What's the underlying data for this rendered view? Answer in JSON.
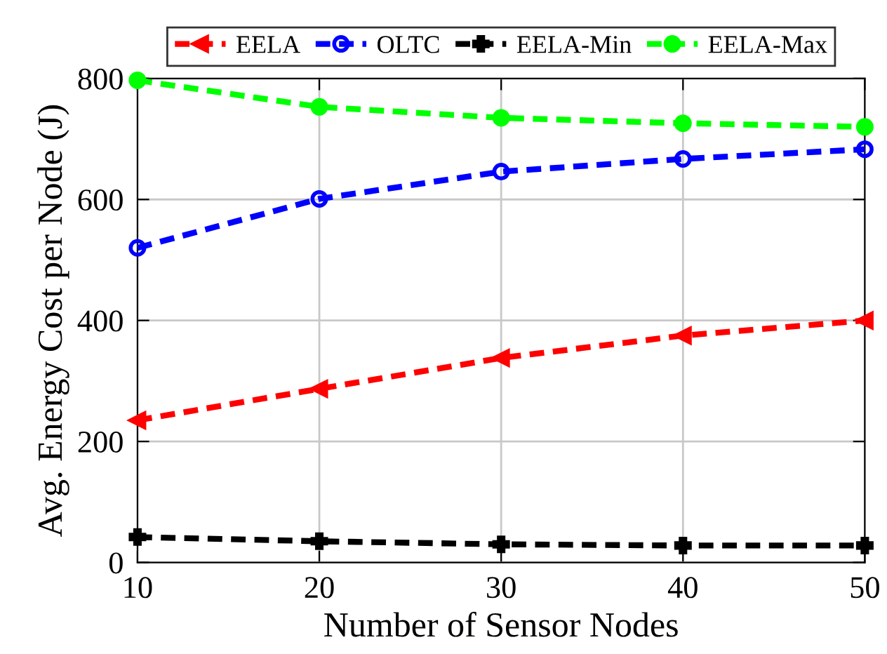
{
  "chart_data": {
    "type": "line",
    "xlabel": "Number of Sensor Nodes",
    "ylabel": "Avg. Energy Cost per Node (J)",
    "x": [
      10,
      20,
      30,
      40,
      50
    ],
    "xlim": [
      10,
      50
    ],
    "xticks": [
      10,
      20,
      30,
      40,
      50
    ],
    "ylim": [
      0,
      800
    ],
    "yticks": [
      0,
      200,
      400,
      600,
      800
    ],
    "grid": true,
    "legend": "top",
    "line_style": "dashed",
    "series": [
      {
        "name": "EELA",
        "color": "#ff0000",
        "marker": "triangle",
        "values": [
          235,
          287,
          338,
          375,
          400
        ]
      },
      {
        "name": "OLTC",
        "color": "#0000ff",
        "marker": "circle",
        "values": [
          520,
          601,
          646,
          667,
          683
        ]
      },
      {
        "name": "EELA-Min",
        "color": "#000000",
        "marker": "cross",
        "values": [
          42,
          35,
          30,
          28,
          28
        ]
      },
      {
        "name": "EELA-Max",
        "color": "#00ff00",
        "marker": "circle",
        "values": [
          797,
          753,
          735,
          726,
          720
        ]
      }
    ]
  }
}
